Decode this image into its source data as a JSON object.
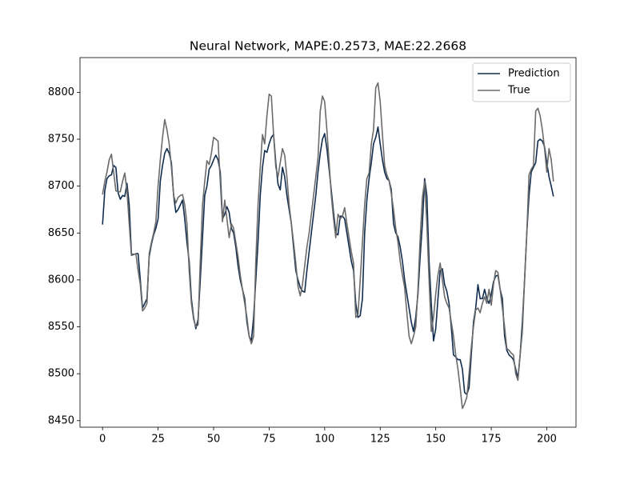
{
  "chart_data": {
    "type": "line",
    "title": "Neural Network, MAPE:0.2573, MAE:22.2668",
    "x": [
      0,
      1,
      2,
      3,
      4,
      5,
      6,
      7,
      8,
      9,
      10,
      11,
      12,
      13,
      14,
      15,
      16,
      17,
      18,
      19,
      20,
      21,
      22,
      23,
      24,
      25,
      26,
      27,
      28,
      29,
      30,
      31,
      32,
      33,
      34,
      35,
      36,
      37,
      38,
      39,
      40,
      41,
      42,
      43,
      44,
      45,
      46,
      47,
      48,
      49,
      50,
      51,
      52,
      53,
      54,
      55,
      56,
      57,
      58,
      59,
      60,
      61,
      62,
      63,
      64,
      65,
      66,
      67,
      68,
      69,
      70,
      71,
      72,
      73,
      74,
      75,
      76,
      77,
      78,
      79,
      80,
      81,
      82,
      83,
      84,
      85,
      86,
      87,
      88,
      89,
      90,
      91,
      92,
      93,
      94,
      95,
      96,
      97,
      98,
      99,
      100,
      101,
      102,
      103,
      104,
      105,
      106,
      107,
      108,
      109,
      110,
      111,
      112,
      113,
      114,
      115,
      116,
      117,
      118,
      119,
      120,
      121,
      122,
      123,
      124,
      125,
      126,
      127,
      128,
      129,
      130,
      131,
      132,
      133,
      134,
      135,
      136,
      137,
      138,
      139,
      140,
      141,
      142,
      143,
      144,
      145,
      146,
      147,
      148,
      149,
      150,
      151,
      152,
      153,
      154,
      155,
      156,
      157,
      158,
      159,
      160,
      161,
      162,
      163,
      164,
      165,
      166,
      167,
      168,
      169,
      170,
      171,
      172,
      173,
      174,
      175,
      176,
      177,
      178,
      179,
      180,
      181,
      182,
      183,
      184,
      185,
      186,
      187,
      188,
      189,
      190,
      191,
      192,
      193,
      194,
      195,
      196,
      197,
      198,
      199,
      200,
      201,
      202,
      203
    ],
    "series": [
      {
        "name": "Prediction",
        "color": "#112d4e",
        "values": [
          8659,
          8695,
          8708,
          8711,
          8712,
          8722,
          8720,
          8693,
          8686,
          8690,
          8689,
          8703,
          8680,
          8628,
          8627,
          8628,
          8628,
          8600,
          8570,
          8575,
          8580,
          8625,
          8638,
          8648,
          8655,
          8665,
          8705,
          8722,
          8735,
          8740,
          8735,
          8725,
          8690,
          8672,
          8675,
          8680,
          8685,
          8665,
          8640,
          8620,
          8580,
          8560,
          8548,
          8558,
          8600,
          8645,
          8690,
          8700,
          8718,
          8722,
          8728,
          8733,
          8728,
          8715,
          8665,
          8670,
          8678,
          8672,
          8655,
          8650,
          8635,
          8615,
          8600,
          8590,
          8580,
          8555,
          8540,
          8535,
          8560,
          8600,
          8640,
          8690,
          8720,
          8738,
          8736,
          8745,
          8752,
          8755,
          8725,
          8702,
          8696,
          8720,
          8710,
          8690,
          8675,
          8660,
          8635,
          8610,
          8600,
          8592,
          8588,
          8587,
          8610,
          8630,
          8650,
          8670,
          8690,
          8715,
          8735,
          8750,
          8756,
          8740,
          8718,
          8695,
          8672,
          8650,
          8648,
          8668,
          8668,
          8665,
          8650,
          8635,
          8620,
          8610,
          8575,
          8560,
          8562,
          8580,
          8650,
          8685,
          8708,
          8725,
          8745,
          8752,
          8763,
          8745,
          8728,
          8715,
          8708,
          8706,
          8696,
          8660,
          8650,
          8646,
          8635,
          8620,
          8600,
          8585,
          8570,
          8555,
          8545,
          8560,
          8585,
          8625,
          8660,
          8708,
          8690,
          8620,
          8575,
          8535,
          8548,
          8580,
          8610,
          8612,
          8595,
          8588,
          8575,
          8550,
          8520,
          8518,
          8515,
          8515,
          8505,
          8480,
          8478,
          8485,
          8520,
          8555,
          8570,
          8595,
          8580,
          8580,
          8590,
          8580,
          8575,
          8585,
          8598,
          8604,
          8605,
          8590,
          8580,
          8540,
          8525,
          8520,
          8518,
          8515,
          8505,
          8495,
          8520,
          8555,
          8600,
          8650,
          8690,
          8715,
          8720,
          8725,
          8748,
          8750,
          8748,
          8742,
          8725,
          8710,
          8700,
          8689
        ]
      },
      {
        "name": "True",
        "color": "#6b6b6b",
        "values": [
          8691,
          8705,
          8715,
          8728,
          8734,
          8715,
          8695,
          8694,
          8694,
          8705,
          8714,
          8695,
          8660,
          8626,
          8627,
          8628,
          8610,
          8595,
          8567,
          8570,
          8575,
          8628,
          8640,
          8650,
          8662,
          8700,
          8728,
          8752,
          8771,
          8760,
          8745,
          8720,
          8690,
          8682,
          8688,
          8690,
          8691,
          8680,
          8660,
          8610,
          8575,
          8558,
          8550,
          8552,
          8620,
          8680,
          8705,
          8727,
          8723,
          8735,
          8752,
          8750,
          8748,
          8705,
          8662,
          8685,
          8665,
          8645,
          8660,
          8655,
          8640,
          8625,
          8605,
          8590,
          8575,
          8560,
          8540,
          8532,
          8540,
          8620,
          8680,
          8720,
          8755,
          8745,
          8775,
          8798,
          8796,
          8755,
          8720,
          8710,
          8725,
          8740,
          8733,
          8710,
          8680,
          8660,
          8640,
          8618,
          8593,
          8583,
          8595,
          8615,
          8635,
          8650,
          8670,
          8690,
          8710,
          8730,
          8780,
          8796,
          8790,
          8760,
          8725,
          8690,
          8665,
          8645,
          8670,
          8665,
          8668,
          8677,
          8660,
          8645,
          8630,
          8618,
          8560,
          8563,
          8600,
          8640,
          8680,
          8708,
          8714,
          8745,
          8760,
          8805,
          8810,
          8790,
          8755,
          8722,
          8712,
          8706,
          8692,
          8675,
          8655,
          8640,
          8620,
          8605,
          8592,
          8565,
          8540,
          8532,
          8540,
          8550,
          8590,
          8645,
          8688,
          8705,
          8660,
          8600,
          8545,
          8560,
          8585,
          8605,
          8618,
          8600,
          8582,
          8575,
          8570,
          8555,
          8540,
          8520,
          8505,
          8485,
          8463,
          8468,
          8475,
          8500,
          8528,
          8550,
          8568,
          8570,
          8565,
          8575,
          8582,
          8575,
          8590,
          8573,
          8595,
          8610,
          8608,
          8590,
          8570,
          8550,
          8527,
          8525,
          8522,
          8520,
          8500,
          8493,
          8520,
          8545,
          8600,
          8650,
          8712,
          8718,
          8722,
          8780,
          8783,
          8775,
          8760,
          8740,
          8715,
          8740,
          8728,
          8705
        ]
      }
    ],
    "xlim": [
      -10.15,
      213.15
    ],
    "ylim": [
      8443,
      8837
    ],
    "xticks": [
      0,
      25,
      50,
      75,
      100,
      125,
      150,
      175,
      200
    ],
    "yticks": [
      8450,
      8500,
      8550,
      8600,
      8650,
      8700,
      8750,
      8800
    ],
    "legend": "upper right"
  }
}
